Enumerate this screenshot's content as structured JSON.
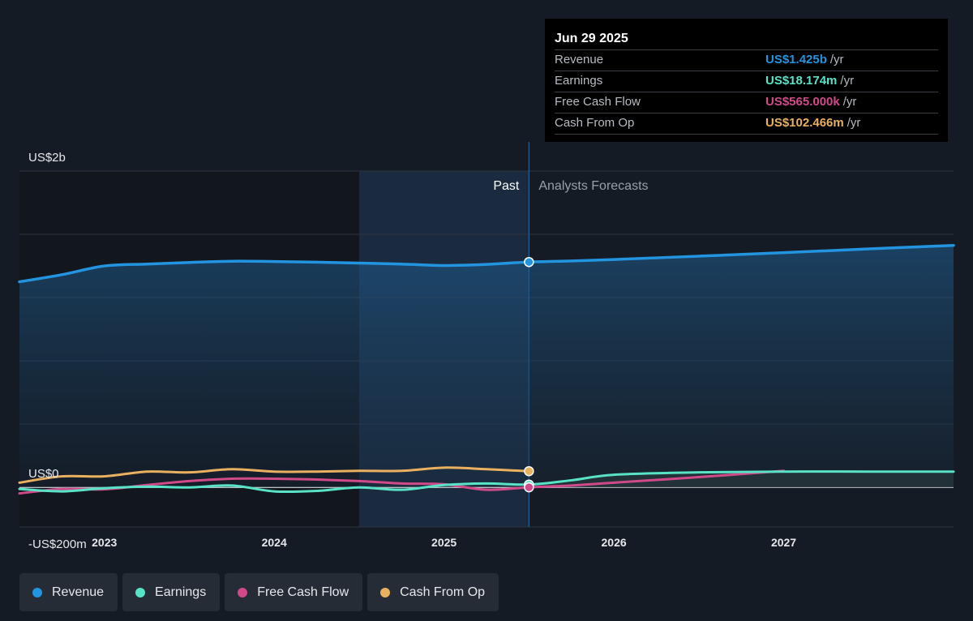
{
  "tooltip": {
    "date": "Jun 29 2025",
    "rows": [
      {
        "label": "Revenue",
        "value": "US$1.425b",
        "unit": "/yr",
        "color": "#2394df"
      },
      {
        "label": "Earnings",
        "value": "US$18.174m",
        "unit": "/yr",
        "color": "#58e3c7"
      },
      {
        "label": "Free Cash Flow",
        "value": "US$565.000k",
        "unit": "/yr",
        "color": "#d04a8a"
      },
      {
        "label": "Cash From Op",
        "value": "US$102.466m",
        "unit": "/yr",
        "color": "#e9b15f"
      }
    ]
  },
  "regions": {
    "past": "Past",
    "forecast": "Analysts Forecasts"
  },
  "legend": [
    {
      "label": "Revenue",
      "color": "#2394df"
    },
    {
      "label": "Earnings",
      "color": "#58e3c7"
    },
    {
      "label": "Free Cash Flow",
      "color": "#d04a8a"
    },
    {
      "label": "Cash From Op",
      "color": "#e9b15f"
    }
  ],
  "chart_data": {
    "type": "line",
    "y_tick_labels": [
      {
        "value": 2000,
        "label": "US$2b"
      },
      {
        "value": 0,
        "label": "US$0"
      },
      {
        "value": -200,
        "label": "-US$200m"
      }
    ],
    "x_tick_labels": [
      "2023",
      "2024",
      "2025",
      "2026",
      "2027"
    ],
    "xlim": [
      2022.5,
      2028.0
    ],
    "ylim": [
      -250,
      2000
    ],
    "grid": true,
    "past_end": 2025.5,
    "highlight_start": 2024.5,
    "legend_position": "bottom-left",
    "series": [
      {
        "name": "Revenue",
        "color": "#2394df",
        "filled": true,
        "points": [
          [
            2022.5,
            1300
          ],
          [
            2022.75,
            1345
          ],
          [
            2023.0,
            1400
          ],
          [
            2023.25,
            1412
          ],
          [
            2023.5,
            1422
          ],
          [
            2023.75,
            1430
          ],
          [
            2024.0,
            1428
          ],
          [
            2024.25,
            1424
          ],
          [
            2024.5,
            1418
          ],
          [
            2024.75,
            1412
          ],
          [
            2025.0,
            1403
          ],
          [
            2025.25,
            1410
          ],
          [
            2025.5,
            1425
          ],
          [
            2025.75,
            1432
          ],
          [
            2026.0,
            1441
          ],
          [
            2026.5,
            1462
          ],
          [
            2027.0,
            1484
          ],
          [
            2027.5,
            1508
          ],
          [
            2028.0,
            1530
          ]
        ]
      },
      {
        "name": "Earnings",
        "color": "#58e3c7",
        "filled": false,
        "points": [
          [
            2022.5,
            -10
          ],
          [
            2022.75,
            -25
          ],
          [
            2023.0,
            -5
          ],
          [
            2023.25,
            5
          ],
          [
            2023.5,
            0
          ],
          [
            2023.75,
            12
          ],
          [
            2024.0,
            -25
          ],
          [
            2024.25,
            -22
          ],
          [
            2024.5,
            0
          ],
          [
            2024.75,
            -15
          ],
          [
            2025.0,
            15
          ],
          [
            2025.25,
            25
          ],
          [
            2025.5,
            18
          ],
          [
            2025.75,
            45
          ],
          [
            2026.0,
            80
          ],
          [
            2026.5,
            95
          ],
          [
            2027.0,
            100
          ],
          [
            2027.5,
            100
          ],
          [
            2028.0,
            100
          ]
        ]
      },
      {
        "name": "Free Cash Flow",
        "color": "#d04a8a",
        "filled": false,
        "points": [
          [
            2022.5,
            -38
          ],
          [
            2022.75,
            -10
          ],
          [
            2023.0,
            -12
          ],
          [
            2023.25,
            15
          ],
          [
            2023.5,
            40
          ],
          [
            2023.75,
            55
          ],
          [
            2024.0,
            55
          ],
          [
            2024.25,
            50
          ],
          [
            2024.5,
            40
          ],
          [
            2024.75,
            25
          ],
          [
            2025.0,
            20
          ],
          [
            2025.25,
            -15
          ],
          [
            2025.5,
            0.565
          ],
          [
            2025.75,
            12
          ],
          [
            2026.0,
            30
          ],
          [
            2026.5,
            65
          ],
          [
            2027.0,
            105
          ]
        ]
      },
      {
        "name": "Cash From Op",
        "color": "#e9b15f",
        "filled": false,
        "points": [
          [
            2022.5,
            30
          ],
          [
            2022.75,
            70
          ],
          [
            2023.0,
            70
          ],
          [
            2023.25,
            100
          ],
          [
            2023.5,
            95
          ],
          [
            2023.75,
            115
          ],
          [
            2024.0,
            100
          ],
          [
            2024.25,
            100
          ],
          [
            2024.5,
            105
          ],
          [
            2024.75,
            105
          ],
          [
            2025.0,
            125
          ],
          [
            2025.25,
            115
          ],
          [
            2025.5,
            102.466
          ]
        ]
      }
    ]
  }
}
